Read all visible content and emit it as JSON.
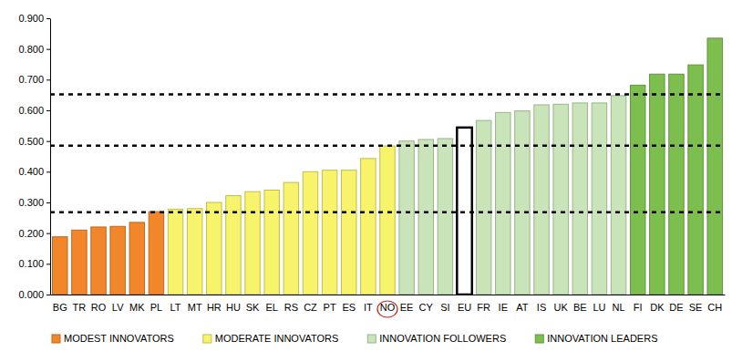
{
  "chart_data": {
    "type": "bar",
    "categories": [
      "BG",
      "TR",
      "RO",
      "LV",
      "MK",
      "PL",
      "LT",
      "MT",
      "HR",
      "HU",
      "SK",
      "EL",
      "RS",
      "CZ",
      "PT",
      "ES",
      "IT",
      "NO",
      "EE",
      "CY",
      "SI",
      "EU",
      "FR",
      "IE",
      "AT",
      "IS",
      "UK",
      "BE",
      "LU",
      "NL",
      "FI",
      "DK",
      "DE",
      "SE",
      "CH"
    ],
    "series": [
      {
        "name": "MODEST INNOVATORS",
        "color": "#f2862a",
        "values": [
          0.188,
          0.21,
          0.22,
          0.222,
          0.235,
          0.27,
          null,
          null,
          null,
          null,
          null,
          null,
          null,
          null,
          null,
          null,
          null,
          null,
          null,
          null,
          null,
          null,
          null,
          null,
          null,
          null,
          null,
          null,
          null,
          null,
          null,
          null,
          null,
          null,
          null
        ]
      },
      {
        "name": "MODERATE INNOVATORS",
        "color": "#f7f36b",
        "values": [
          null,
          null,
          null,
          null,
          null,
          null,
          0.278,
          0.28,
          0.3,
          0.322,
          0.335,
          0.34,
          0.365,
          0.4,
          0.405,
          0.405,
          0.443,
          0.484,
          null,
          null,
          null,
          null,
          null,
          null,
          null,
          null,
          null,
          null,
          null,
          null,
          null,
          null,
          null,
          null,
          null
        ]
      },
      {
        "name": "INNOVATION FOLLOWERS",
        "color": "#c9e4b8",
        "values": [
          null,
          null,
          null,
          null,
          null,
          null,
          null,
          null,
          null,
          null,
          null,
          null,
          null,
          null,
          null,
          null,
          null,
          null,
          0.5,
          0.505,
          0.508,
          null,
          0.567,
          0.593,
          0.598,
          0.618,
          0.62,
          0.624,
          0.624,
          0.648,
          null,
          null,
          null,
          null,
          null
        ]
      },
      {
        "name": "INNOVATION LEADERS",
        "color": "#7dbf4f",
        "values": [
          null,
          null,
          null,
          null,
          null,
          null,
          null,
          null,
          null,
          null,
          null,
          null,
          null,
          null,
          null,
          null,
          null,
          null,
          null,
          null,
          null,
          null,
          null,
          null,
          null,
          null,
          null,
          null,
          null,
          null,
          0.682,
          0.718,
          0.718,
          0.748,
          0.835
        ]
      },
      {
        "color": "#ffffff",
        "values": [
          null,
          null,
          null,
          null,
          null,
          null,
          null,
          null,
          null,
          null,
          null,
          null,
          null,
          null,
          null,
          null,
          null,
          null,
          null,
          null,
          null,
          0.544,
          null,
          null,
          null,
          null,
          null,
          null,
          null,
          null,
          null,
          null,
          null,
          null,
          null
        ]
      }
    ],
    "reference_lines": [
      0.268,
      0.485,
      0.652
    ],
    "ylim": [
      0,
      0.9
    ],
    "yticks": [
      {
        "value": 0,
        "label": "0.000"
      },
      {
        "value": 0.1,
        "label": "0.100"
      },
      {
        "value": 0.2,
        "label": "0.200"
      },
      {
        "value": 0.3,
        "label": "0.300"
      },
      {
        "value": 0.4,
        "label": "0.400"
      },
      {
        "value": 0.5,
        "label": "0.500"
      },
      {
        "value": 0.6,
        "label": "0.600"
      },
      {
        "value": 0.7,
        "label": "0.700"
      },
      {
        "value": 0.8,
        "label": "0.800"
      },
      {
        "value": 0.9,
        "label": "0.900"
      }
    ],
    "grid": false,
    "legend": "bottom"
  }
}
